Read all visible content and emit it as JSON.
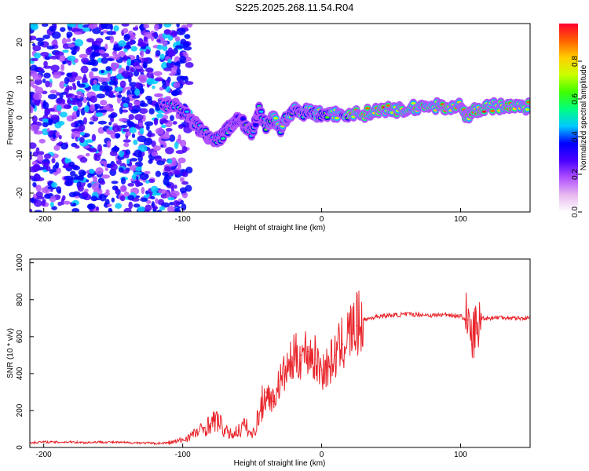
{
  "title": "S225.2025.268.11.54.R04",
  "chart_data": [
    {
      "type": "heatmap",
      "xlabel": "Height of straight line (km)",
      "ylabel": "Frequency (Hz)",
      "xlim": [
        -210,
        150
      ],
      "ylim": [
        -25,
        25
      ],
      "xticks": [
        -200,
        -100,
        0,
        100
      ],
      "yticks": [
        -20,
        -10,
        0,
        10,
        20
      ],
      "colorbar": {
        "label": "Normalized spectral amplitude",
        "range": [
          0,
          1
        ],
        "ticks": [
          "0.0",
          "0.2",
          "0.4",
          "0.6",
          "0.8"
        ],
        "colors": [
          "#ffffff",
          "#e8b8f0",
          "#b050ff",
          "#4a00ff",
          "#0000ff",
          "#00c8ff",
          "#00ff80",
          "#40ff00",
          "#c8ff00",
          "#ffd000",
          "#ff6000",
          "#ff0030"
        ]
      },
      "ridge": {
        "x": [
          -115,
          -105,
          -95,
          -90,
          -85,
          -80,
          -75,
          -70,
          -65,
          -60,
          -55,
          -50,
          -45,
          -40,
          -35,
          -30,
          -25,
          -20,
          -15,
          -10,
          -5,
          0,
          10,
          20,
          30,
          40,
          50,
          60,
          70,
          80,
          90,
          100,
          105,
          110,
          120,
          130,
          140,
          150
        ],
        "y": [
          3,
          3,
          0,
          -2,
          -4,
          -5,
          -6,
          -4,
          -2,
          0,
          -2,
          -4,
          2,
          -2,
          0,
          -3,
          0,
          2,
          1,
          2,
          1,
          1,
          1,
          1,
          1,
          2,
          2,
          2,
          3,
          3,
          3,
          3,
          0,
          2,
          3,
          3,
          3,
          3
        ]
      }
    },
    {
      "type": "line",
      "xlabel": "Height of straight line (km)",
      "ylabel": "SNR (10 * v/v)",
      "xlim": [
        -210,
        150
      ],
      "ylim": [
        0,
        1020
      ],
      "xticks": [
        -200,
        -100,
        0,
        100
      ],
      "yticks": [
        0,
        200,
        400,
        600,
        800,
        1000
      ],
      "color": "#e8242a",
      "series": [
        {
          "name": "SNR",
          "x": [
            -210,
            -200,
            -190,
            -180,
            -170,
            -160,
            -150,
            -140,
            -130,
            -120,
            -110,
            -100,
            -95,
            -90,
            -85,
            -80,
            -75,
            -70,
            -65,
            -60,
            -55,
            -50,
            -45,
            -40,
            -35,
            -30,
            -25,
            -20,
            -15,
            -10,
            -5,
            0,
            5,
            10,
            15,
            20,
            25,
            30,
            40,
            50,
            60,
            70,
            80,
            90,
            100,
            105,
            108,
            110,
            112,
            115,
            120,
            130,
            140,
            150
          ],
          "y": [
            25,
            30,
            28,
            30,
            26,
            30,
            28,
            26,
            25,
            22,
            25,
            40,
            60,
            80,
            100,
            130,
            150,
            90,
            70,
            90,
            120,
            60,
            180,
            300,
            250,
            360,
            420,
            480,
            500,
            520,
            480,
            420,
            440,
            500,
            560,
            620,
            660,
            690,
            710,
            715,
            720,
            720,
            715,
            720,
            710,
            690,
            560,
            650,
            620,
            700,
            700,
            705,
            700,
            700
          ]
        }
      ]
    }
  ]
}
